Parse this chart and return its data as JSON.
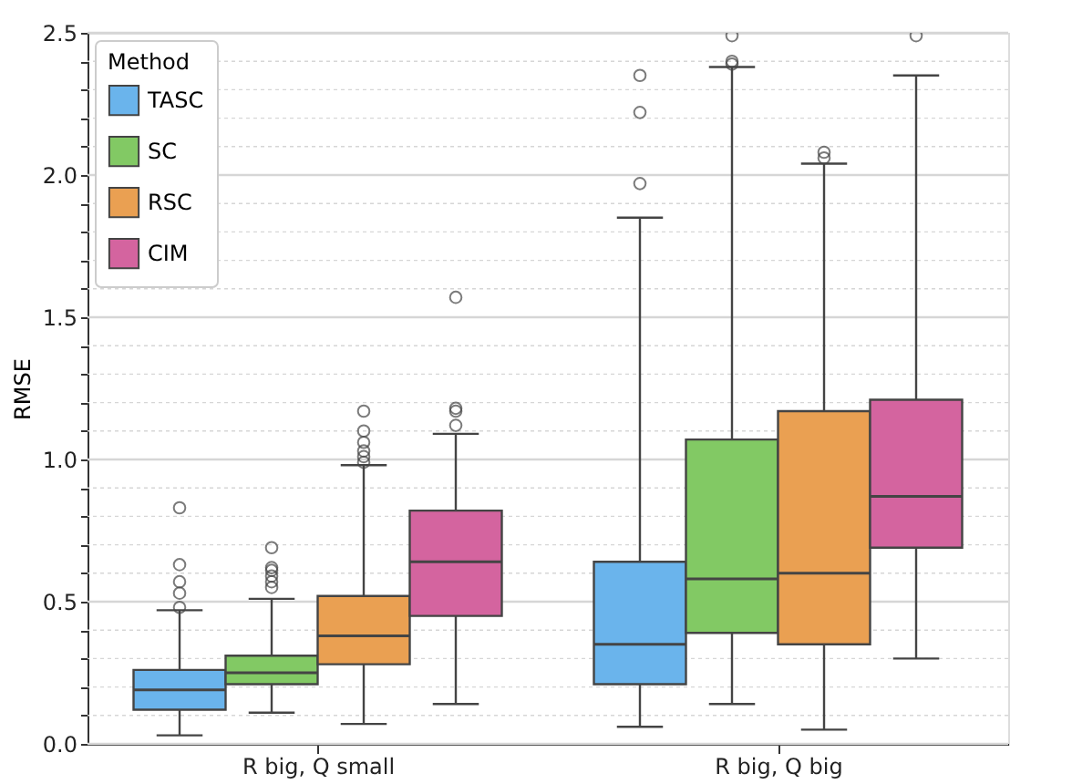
{
  "chart_data": {
    "type": "box",
    "ylabel": "RMSE",
    "legend_title": "Method",
    "legend": "top left",
    "grid": "y",
    "categories": [
      "R big, Q small",
      "R big, Q big"
    ],
    "ylim": [
      0,
      2.5
    ],
    "yticks": [
      {
        "value": 0,
        "label": "0.0"
      },
      {
        "value": 0.1,
        "label": null
      },
      {
        "value": 0.2,
        "label": null
      },
      {
        "value": 0.3,
        "label": null
      },
      {
        "value": 0.4,
        "label": null
      },
      {
        "value": 0.5,
        "label": "0.5"
      },
      {
        "value": 0.6,
        "label": null
      },
      {
        "value": 0.7,
        "label": null
      },
      {
        "value": 0.8,
        "label": null
      },
      {
        "value": 0.9,
        "label": null
      },
      {
        "value": 1,
        "label": "1.0"
      },
      {
        "value": 1.1,
        "label": null
      },
      {
        "value": 1.2,
        "label": null
      },
      {
        "value": 1.3,
        "label": null
      },
      {
        "value": 1.4,
        "label": null
      },
      {
        "value": 1.5,
        "label": "1.5"
      },
      {
        "value": 1.6,
        "label": null
      },
      {
        "value": 1.7,
        "label": null
      },
      {
        "value": 1.8,
        "label": null
      },
      {
        "value": 1.9,
        "label": null
      },
      {
        "value": 2,
        "label": "2.0"
      },
      {
        "value": 2.1,
        "label": null
      },
      {
        "value": 2.2,
        "label": null
      },
      {
        "value": 2.3,
        "label": null
      },
      {
        "value": 2.4,
        "label": null
      },
      {
        "value": 2.5,
        "label": "2.5"
      }
    ],
    "series": [
      {
        "name": "TASC",
        "color": "#6ab4ec",
        "boxes": [
          {
            "low": 0.03,
            "q1": 0.12,
            "median": 0.19,
            "q3": 0.26,
            "high": 0.47,
            "outliers": [
              0.48,
              0.53,
              0.57,
              0.63,
              0.83
            ]
          },
          {
            "low": 0.06,
            "q1": 0.21,
            "median": 0.35,
            "q3": 0.64,
            "high": 1.85,
            "outliers": [
              1.97,
              2.22,
              2.35
            ]
          }
        ]
      },
      {
        "name": "SC",
        "color": "#82c964",
        "boxes": [
          {
            "low": 0.11,
            "q1": 0.21,
            "median": 0.25,
            "q3": 0.31,
            "high": 0.51,
            "outliers": [
              0.55,
              0.57,
              0.59,
              0.61,
              0.62,
              0.69
            ]
          },
          {
            "low": 0.14,
            "q1": 0.39,
            "median": 0.58,
            "q3": 1.07,
            "high": 2.38,
            "outliers": [
              2.39,
              2.4,
              2.49
            ]
          }
        ]
      },
      {
        "name": "RSC",
        "color": "#eaa052",
        "boxes": [
          {
            "low": 0.07,
            "q1": 0.28,
            "median": 0.38,
            "q3": 0.52,
            "high": 0.98,
            "outliers": [
              0.99,
              1.01,
              1.03,
              1.06,
              1.1,
              1.17
            ]
          },
          {
            "low": 0.05,
            "q1": 0.35,
            "median": 0.6,
            "q3": 1.17,
            "high": 2.04,
            "outliers": [
              2.06,
              2.08
            ]
          }
        ]
      },
      {
        "name": "CIM",
        "color": "#d4649f",
        "boxes": [
          {
            "low": 0.14,
            "q1": 0.45,
            "median": 0.64,
            "q3": 0.82,
            "high": 1.09,
            "outliers": [
              1.12,
              1.17,
              1.18,
              1.57
            ]
          },
          {
            "low": 0.3,
            "q1": 0.69,
            "median": 0.87,
            "q3": 1.21,
            "high": 2.35,
            "outliers": [
              2.49
            ]
          }
        ]
      }
    ]
  }
}
